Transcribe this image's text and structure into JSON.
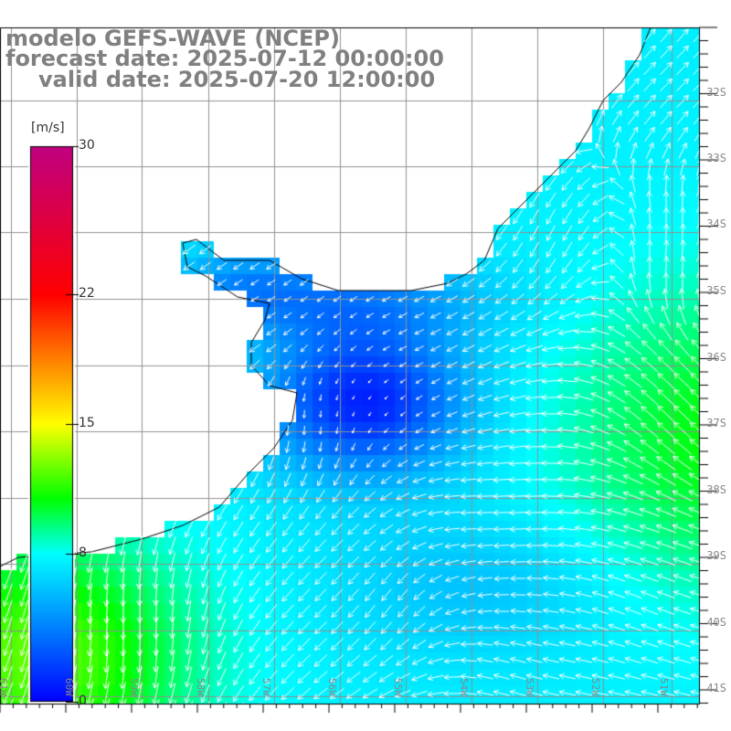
{
  "title": {
    "model": "modelo GEFS-WAVE (NCEP)",
    "forecast": "forecast date: 2025-07-12 00:00:00",
    "valid": "valid date: 2025-07-20 12:00:00"
  },
  "colorbar": {
    "unit": "[m/s]",
    "ticks": [
      {
        "value": 0,
        "label": "0"
      },
      {
        "value": 8,
        "label": "8"
      },
      {
        "value": 15,
        "label": "15"
      },
      {
        "value": 22,
        "label": "22"
      },
      {
        "value": 30,
        "label": "30"
      }
    ],
    "range": [
      0,
      30
    ],
    "colors": [
      {
        "value": 0,
        "color": "#0000ff"
      },
      {
        "value": 4,
        "color": "#0080ff"
      },
      {
        "value": 8,
        "color": "#00ffff"
      },
      {
        "value": 11,
        "color": "#00ff00"
      },
      {
        "value": 15,
        "color": "#ffff00"
      },
      {
        "value": 22,
        "color": "#ff0000"
      },
      {
        "value": 30,
        "color": "#c00080"
      }
    ]
  },
  "latitude_labels": [
    "32S",
    "33S",
    "34S",
    "35S",
    "36S",
    "37S",
    "38S",
    "39S",
    "40S",
    "41S"
  ],
  "longitude_labels": [
    "61W",
    "60W",
    "59W",
    "58W",
    "57W",
    "56W",
    "55W",
    "54W",
    "53W",
    "52W",
    "51W"
  ]
}
